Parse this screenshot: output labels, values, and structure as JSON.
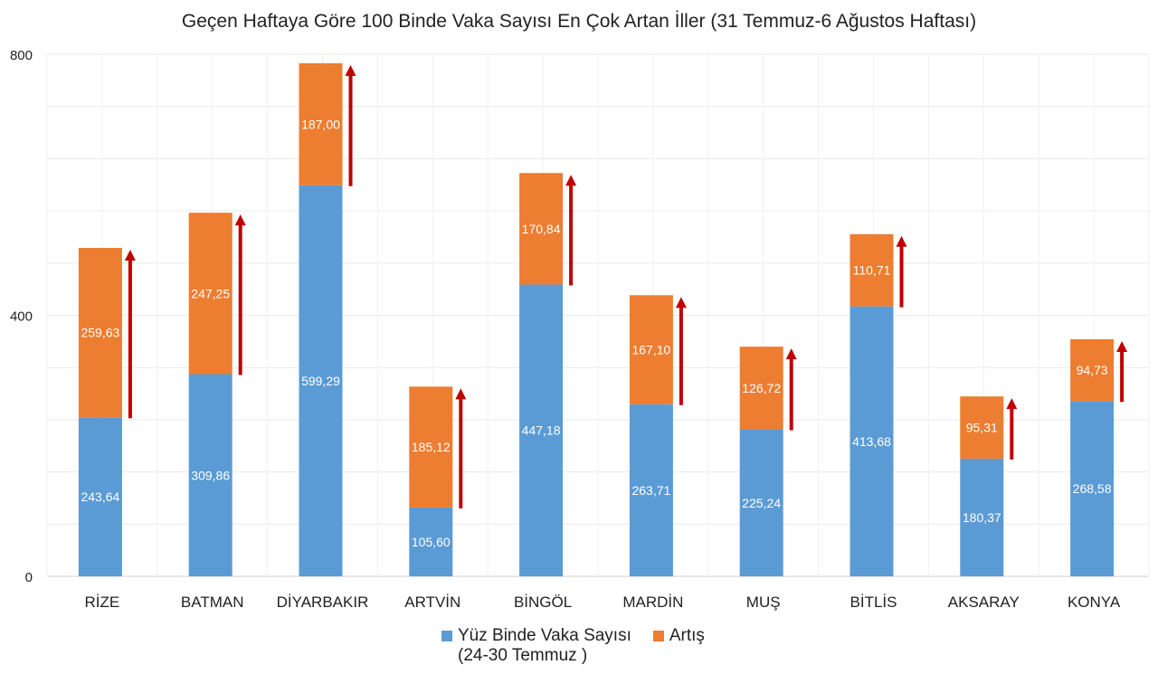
{
  "chart_data": {
    "type": "bar",
    "stacked": true,
    "title": "Geçen Haftaya Göre 100 Binde Vaka Sayısı En Çok Artan İller (31 Temmuz-6 Ağustos Haftası)",
    "xlabel": "",
    "ylabel": "",
    "ylim": [
      0,
      800
    ],
    "yticks": [
      "0",
      "400",
      "800"
    ],
    "grid": true,
    "legend_position": "bottom",
    "categories": [
      "RİZE",
      "BATMAN",
      "DİYARBAKIR",
      "ARTVİN",
      "BİNGÖL",
      "MARDİN",
      "MUŞ",
      "BİTLİS",
      "AKSARAY",
      "KONYA"
    ],
    "series": [
      {
        "name": "Yüz Binde Vaka Sayısı (24-30 Temmuz )",
        "color": "#5b9bd5",
        "values": [
          243.64,
          309.86,
          599.29,
          105.6,
          447.18,
          263.71,
          225.24,
          413.68,
          180.37,
          268.58
        ],
        "labels": [
          "243,64",
          "309,86",
          "599,29",
          "105,60",
          "447,18",
          "263,71",
          "225,24",
          "413,68",
          "180,37",
          "268,58"
        ]
      },
      {
        "name": "Artış",
        "color": "#ed7d31",
        "values": [
          259.63,
          247.25,
          187.0,
          185.12,
          170.84,
          167.1,
          126.72,
          110.71,
          95.31,
          94.73
        ],
        "labels": [
          "259,63",
          "247,25",
          "187,00",
          "185,12",
          "170,84",
          "167,10",
          "126,72",
          "110,71",
          "95,31",
          "94,73"
        ]
      }
    ],
    "annotations": {
      "increase_arrow_color": "#c00000"
    }
  },
  "legend": {
    "line1": "Yüz Binde Vaka Sayısı",
    "line2": "(24-30 Temmuz )",
    "artis": "Artış"
  }
}
